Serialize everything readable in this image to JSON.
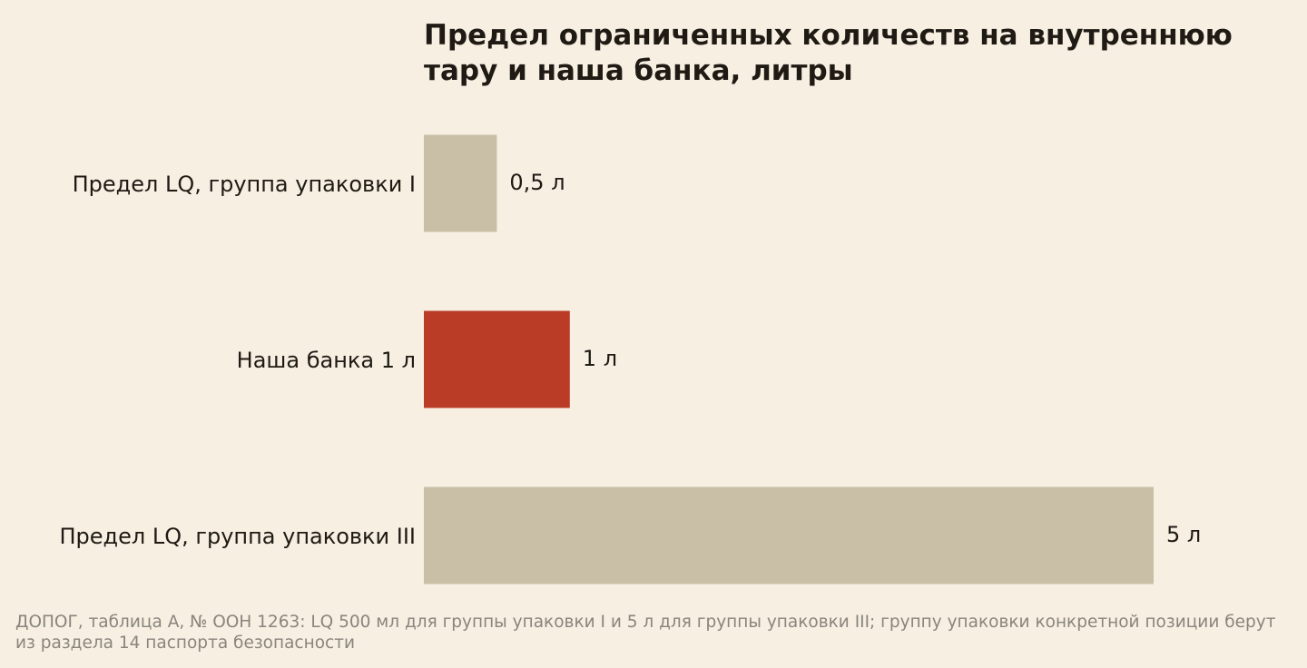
{
  "chart_data": {
    "type": "barh",
    "title": "Предел ограниченных количеств на внутреннюю тару и наша банка, литры",
    "categories": [
      "Предел LQ, группа упаковки I",
      "Наша банка 1 л",
      "Предел LQ, группа упаковки III"
    ],
    "values": [
      0.5,
      1,
      5
    ],
    "value_labels": [
      "0,5 л",
      "1 л",
      "5 л"
    ],
    "colors": [
      "#c9bfa7",
      "#bb3c26",
      "#c9bfa7"
    ],
    "xlim": [
      0,
      5
    ],
    "note": "ДОПОГ, таблица А, № ООН 1263: LQ 500 мл для группы упаковки I и 5 л для группы упаковки III; группу упаковки конкретной позиции берут из раздела 14 паспорта безопасности"
  }
}
